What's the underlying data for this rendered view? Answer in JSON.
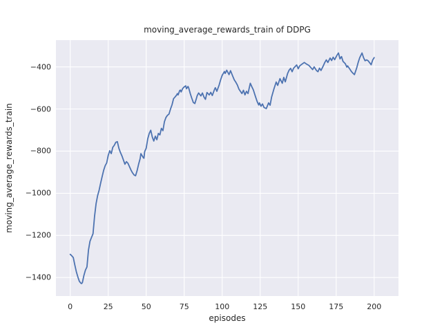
{
  "title": "moving_average_rewards_train of DDPG",
  "colors": {
    "figure_background": "#ffffff",
    "plot_background": "#eaeaf2",
    "gridline": "#ffffff",
    "line": "#4c72b0",
    "text": "#262626"
  },
  "chart_data": {
    "type": "line",
    "title": "moving_average_rewards_train of DDPG",
    "xlabel": "episodes",
    "ylabel": "moving_average_rewards_train",
    "x_ticks": [
      0,
      25,
      50,
      75,
      100,
      125,
      150,
      175,
      200
    ],
    "y_ticks": [
      -400,
      -600,
      -800,
      -1000,
      -1200,
      -1400
    ],
    "xlim": [
      -9.4,
      216
    ],
    "ylim": [
      -1488,
      -273
    ],
    "grid": true,
    "legend_position": "none",
    "series": [
      {
        "name": "moving_average_rewards_train",
        "color": "#4c72b0",
        "points": [
          [
            0,
            -1290
          ],
          [
            1,
            -1297
          ],
          [
            2,
            -1305
          ],
          [
            3,
            -1340
          ],
          [
            4,
            -1372
          ],
          [
            5,
            -1397
          ],
          [
            6,
            -1418
          ],
          [
            7,
            -1427
          ],
          [
            7.5,
            -1429
          ],
          [
            8,
            -1424
          ],
          [
            9,
            -1390
          ],
          [
            10,
            -1365
          ],
          [
            11,
            -1350
          ],
          [
            12,
            -1270
          ],
          [
            13,
            -1228
          ],
          [
            14,
            -1210
          ],
          [
            15,
            -1192
          ],
          [
            16,
            -1110
          ],
          [
            17,
            -1050
          ],
          [
            18,
            -1012
          ],
          [
            19,
            -986
          ],
          [
            20,
            -952
          ],
          [
            21,
            -921
          ],
          [
            22,
            -891
          ],
          [
            23,
            -869
          ],
          [
            24,
            -856
          ],
          [
            25,
            -820
          ],
          [
            26,
            -798
          ],
          [
            27,
            -812
          ],
          [
            28,
            -782
          ],
          [
            29,
            -772
          ],
          [
            30,
            -758
          ],
          [
            31,
            -755
          ],
          [
            32,
            -786
          ],
          [
            33,
            -806
          ],
          [
            34,
            -822
          ],
          [
            35,
            -842
          ],
          [
            36,
            -862
          ],
          [
            37,
            -850
          ],
          [
            38,
            -858
          ],
          [
            39,
            -874
          ],
          [
            40,
            -890
          ],
          [
            41,
            -903
          ],
          [
            42,
            -913
          ],
          [
            43,
            -917
          ],
          [
            44,
            -893
          ],
          [
            45,
            -862
          ],
          [
            46,
            -836
          ],
          [
            46.5,
            -812
          ],
          [
            47,
            -818
          ],
          [
            48,
            -830
          ],
          [
            48.5,
            -834
          ],
          [
            49,
            -802
          ],
          [
            50,
            -786
          ],
          [
            51,
            -742
          ],
          [
            52,
            -716
          ],
          [
            53,
            -701
          ],
          [
            54,
            -733
          ],
          [
            55,
            -752
          ],
          [
            56,
            -729
          ],
          [
            57,
            -746
          ],
          [
            58,
            -716
          ],
          [
            59,
            -723
          ],
          [
            60,
            -692
          ],
          [
            61,
            -703
          ],
          [
            62,
            -660
          ],
          [
            63,
            -640
          ],
          [
            64,
            -630
          ],
          [
            65,
            -624
          ],
          [
            66,
            -600
          ],
          [
            67,
            -580
          ],
          [
            68,
            -551
          ],
          [
            69,
            -543
          ],
          [
            70,
            -534
          ],
          [
            70.5,
            -527
          ],
          [
            71,
            -533
          ],
          [
            72,
            -513
          ],
          [
            72.5,
            -510
          ],
          [
            73,
            -519
          ],
          [
            74,
            -503
          ],
          [
            75,
            -495
          ],
          [
            76,
            -490
          ],
          [
            76.5,
            -504
          ],
          [
            77.5,
            -493
          ],
          [
            78,
            -501
          ],
          [
            79,
            -527
          ],
          [
            80,
            -549
          ],
          [
            81,
            -569
          ],
          [
            82,
            -574
          ],
          [
            83,
            -551
          ],
          [
            83.5,
            -538
          ],
          [
            84.5,
            -524
          ],
          [
            86,
            -538
          ],
          [
            87,
            -524
          ],
          [
            88,
            -543
          ],
          [
            89,
            -554
          ],
          [
            90,
            -522
          ],
          [
            91.5,
            -533
          ],
          [
            92.5,
            -521
          ],
          [
            93.5,
            -536
          ],
          [
            95,
            -506
          ],
          [
            95.5,
            -499
          ],
          [
            96.5,
            -516
          ],
          [
            98,
            -486
          ],
          [
            99,
            -461
          ],
          [
            100,
            -440
          ],
          [
            101.5,
            -422
          ],
          [
            102,
            -431
          ],
          [
            103,
            -416
          ],
          [
            104.5,
            -437
          ],
          [
            105.5,
            -418
          ],
          [
            107,
            -445
          ],
          [
            108,
            -462
          ],
          [
            109,
            -473
          ],
          [
            110,
            -486
          ],
          [
            111,
            -505
          ],
          [
            113,
            -527
          ],
          [
            114,
            -511
          ],
          [
            115,
            -533
          ],
          [
            116,
            -516
          ],
          [
            117,
            -527
          ],
          [
            118.5,
            -478
          ],
          [
            119.5,
            -494
          ],
          [
            120.5,
            -509
          ],
          [
            122,
            -543
          ],
          [
            123,
            -565
          ],
          [
            124,
            -581
          ],
          [
            124.5,
            -571
          ],
          [
            125.5,
            -587
          ],
          [
            126.5,
            -576
          ],
          [
            127.5,
            -593
          ],
          [
            129,
            -598
          ],
          [
            130.5,
            -571
          ],
          [
            131.5,
            -582
          ],
          [
            132.5,
            -543
          ],
          [
            134,
            -505
          ],
          [
            135.5,
            -472
          ],
          [
            136.5,
            -488
          ],
          [
            138,
            -456
          ],
          [
            139.5,
            -478
          ],
          [
            140.5,
            -450
          ],
          [
            141.5,
            -471
          ],
          [
            143,
            -432
          ],
          [
            144,
            -416
          ],
          [
            145,
            -407
          ],
          [
            146,
            -423
          ],
          [
            147,
            -406
          ],
          [
            149,
            -391
          ],
          [
            150,
            -409
          ],
          [
            151,
            -395
          ],
          [
            152.5,
            -387
          ],
          [
            154,
            -379
          ],
          [
            155.5,
            -387
          ],
          [
            157,
            -393
          ],
          [
            158.5,
            -405
          ],
          [
            159.5,
            -413
          ],
          [
            160.5,
            -400
          ],
          [
            162,
            -417
          ],
          [
            163,
            -423
          ],
          [
            164,
            -406
          ],
          [
            165,
            -417
          ],
          [
            166.5,
            -395
          ],
          [
            167.5,
            -379
          ],
          [
            168.5,
            -367
          ],
          [
            169.5,
            -379
          ],
          [
            171,
            -358
          ],
          [
            172,
            -370
          ],
          [
            173,
            -354
          ],
          [
            174,
            -366
          ],
          [
            175.5,
            -345
          ],
          [
            176.5,
            -334
          ],
          [
            177.5,
            -362
          ],
          [
            178.5,
            -351
          ],
          [
            179.5,
            -374
          ],
          [
            181,
            -385
          ],
          [
            182,
            -401
          ],
          [
            182.5,
            -395
          ],
          [
            184,
            -411
          ],
          [
            185,
            -422
          ],
          [
            186,
            -430
          ],
          [
            187,
            -437
          ],
          [
            188.5,
            -405
          ],
          [
            189.5,
            -378
          ],
          [
            190.5,
            -356
          ],
          [
            192,
            -334
          ],
          [
            193,
            -356
          ],
          [
            194,
            -371
          ],
          [
            195,
            -367
          ],
          [
            196,
            -371
          ],
          [
            197.5,
            -385
          ],
          [
            198,
            -390
          ],
          [
            199,
            -368
          ],
          [
            200,
            -356
          ]
        ]
      }
    ]
  }
}
